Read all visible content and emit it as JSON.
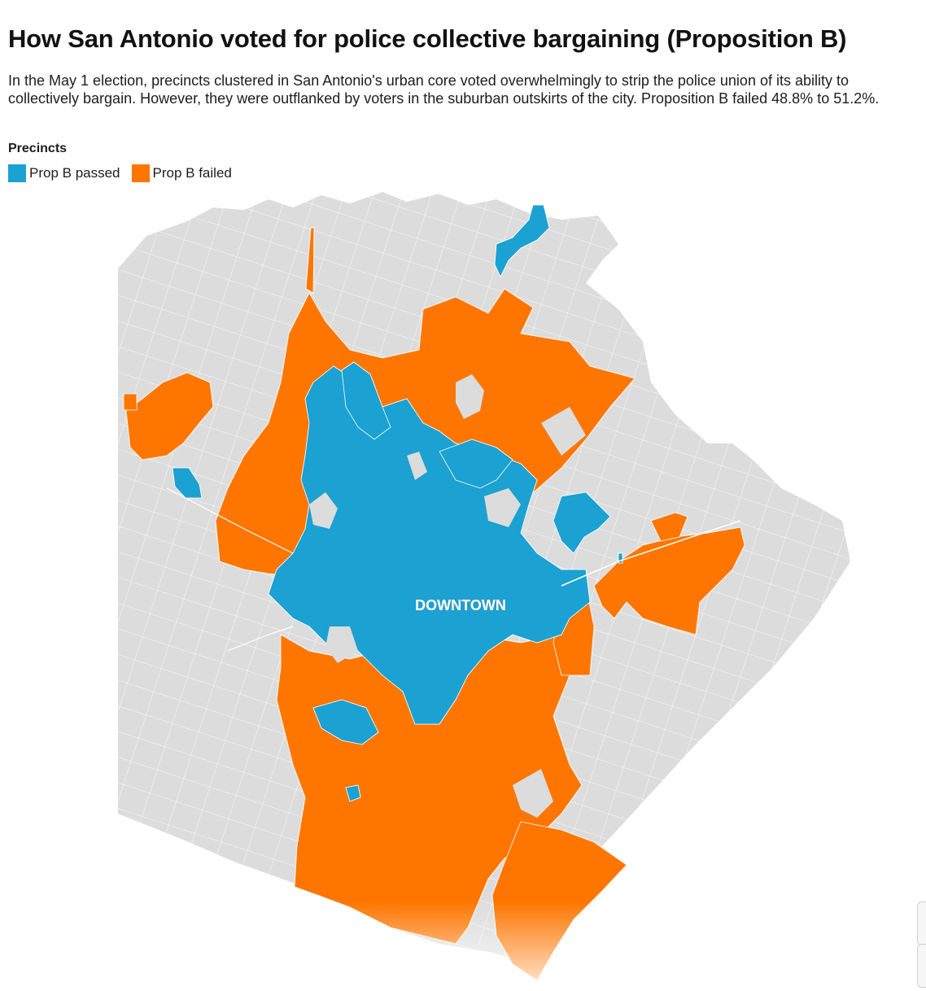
{
  "header": {
    "title": "How San Antonio voted for police collective bargaining (Proposition B)",
    "description": "In the May 1 election, precincts clustered in San Antonio's urban core voted overwhelmingly to strip the police union of its ability to collectively bargain. However, they were outflanked by voters in the suburban outskirts of the city. Proposition B failed 48.8% to 51.2%."
  },
  "legend": {
    "title": "Precincts",
    "items": [
      {
        "label": "Prop B passed",
        "color": "#1ba1d2"
      },
      {
        "label": "Prop B failed",
        "color": "#fe7600"
      }
    ]
  },
  "map": {
    "label": "DOWNTOWN",
    "colors": {
      "passed": "#1ba1d2",
      "failed": "#fe7600",
      "no_data": "#dcdcdc",
      "borders": "#ffffff"
    }
  }
}
